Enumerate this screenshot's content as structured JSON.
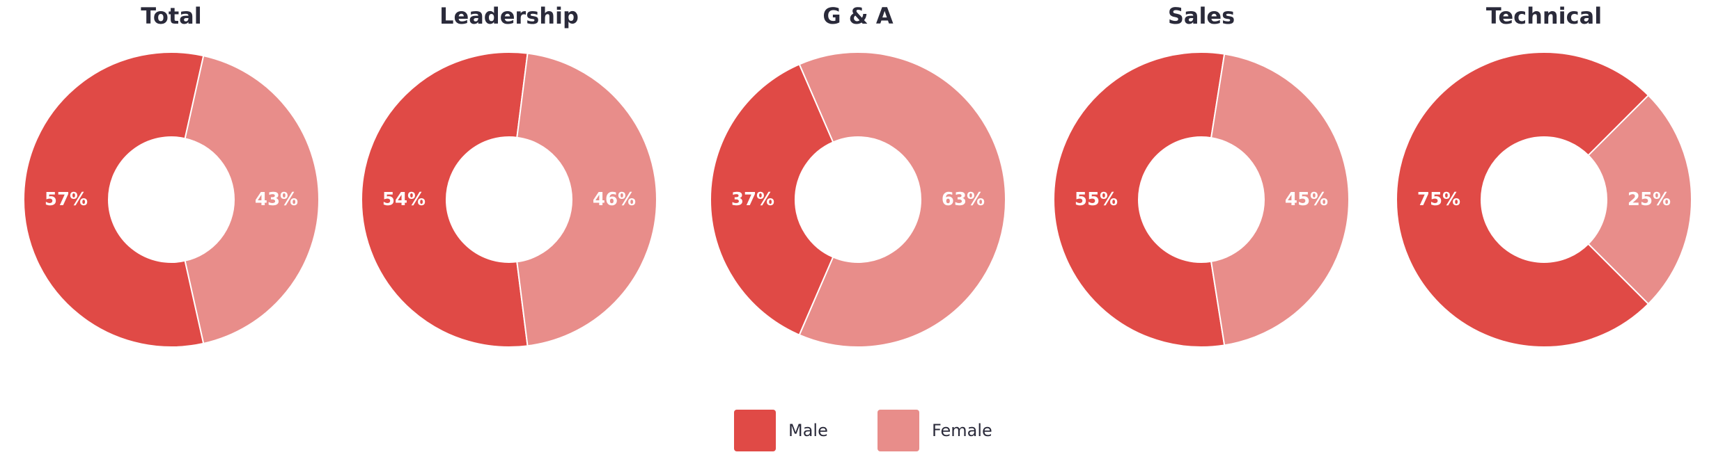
{
  "colors": {
    "male": "#e04a46",
    "female": "#e88d8a",
    "title_text": "#2a2a3a",
    "label_text": "#ffffff"
  },
  "legend": {
    "items": [
      {
        "label": "Male",
        "color": "#e04a46"
      },
      {
        "label": "Female",
        "color": "#e88d8a"
      }
    ]
  },
  "chart_data": [
    {
      "type": "pie",
      "title": "Total",
      "categories": [
        "Male",
        "Female"
      ],
      "values": [
        57,
        43
      ],
      "labels": [
        "57%",
        "43%"
      ]
    },
    {
      "type": "pie",
      "title": "Leadership",
      "categories": [
        "Male",
        "Female"
      ],
      "values": [
        54,
        46
      ],
      "labels": [
        "54%",
        "46%"
      ]
    },
    {
      "type": "pie",
      "title": "G & A",
      "categories": [
        "Male",
        "Female"
      ],
      "values": [
        37,
        63
      ],
      "labels": [
        "37%",
        "63%"
      ]
    },
    {
      "type": "pie",
      "title": "Sales",
      "categories": [
        "Male",
        "Female"
      ],
      "values": [
        55,
        45
      ],
      "labels": [
        "55%",
        "45%"
      ]
    },
    {
      "type": "pie",
      "title": "Technical",
      "categories": [
        "Male",
        "Female"
      ],
      "values": [
        75,
        25
      ],
      "labels": [
        "75%",
        "25%"
      ]
    }
  ]
}
